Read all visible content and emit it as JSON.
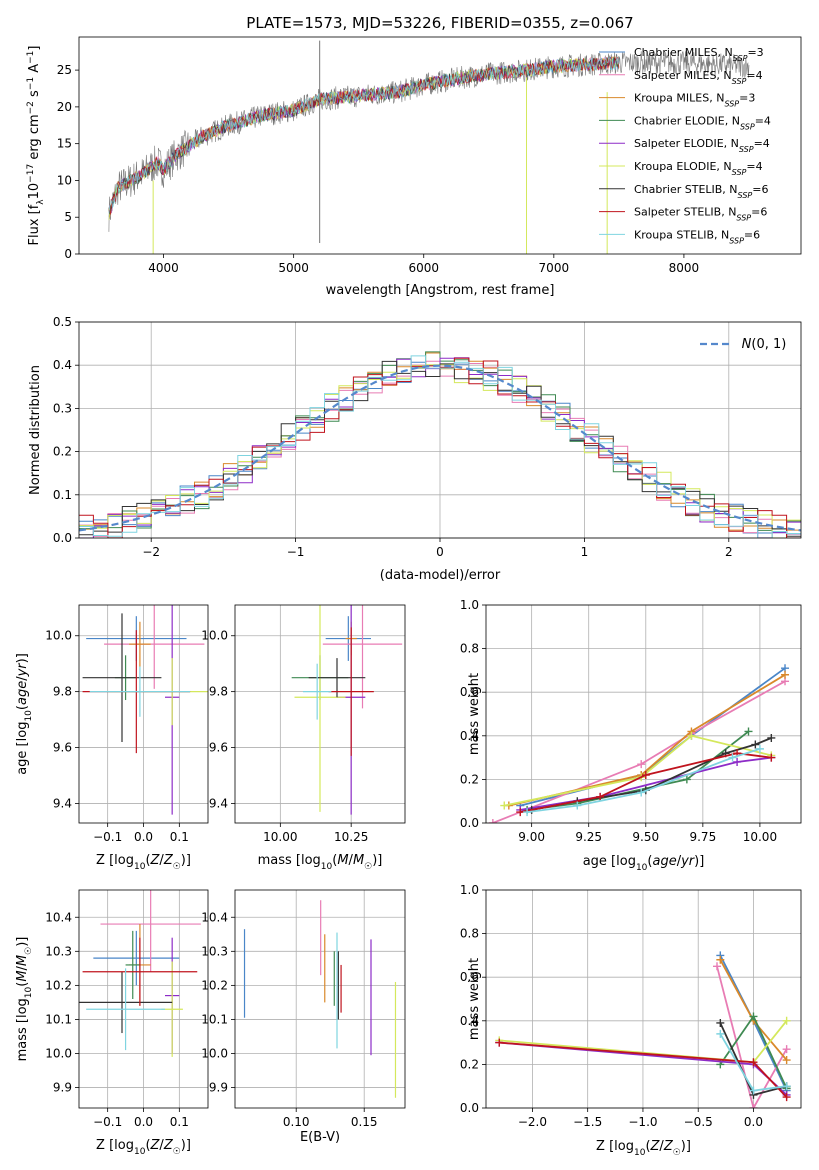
{
  "figure_title": "PLATE=1573, MJD=53226, FIBERID=0355, z=0.067",
  "series": [
    {
      "name": "Chabrier MILES, N$_{SSP}$=3",
      "label_main": "Chabrier MILES, N",
      "label_sub": "SSP",
      "label_tail": "=3",
      "color": "#4a86c8"
    },
    {
      "name": "Salpeter MILES, N$_{SSP}$=4",
      "label_main": "Salpeter MILES, N",
      "label_sub": "SSP",
      "label_tail": "=4",
      "color": "#e87cb4"
    },
    {
      "name": "Kroupa MILES, N$_{SSP}$=3",
      "label_main": "Kroupa MILES, N",
      "label_sub": "SSP",
      "label_tail": "=3",
      "color": "#d9892b"
    },
    {
      "name": "Chabrier ELODIE, N$_{SSP}$=4",
      "label_main": "Chabrier ELODIE, N",
      "label_sub": "SSP",
      "label_tail": "=4",
      "color": "#3f8a52"
    },
    {
      "name": "Salpeter ELODIE, N$_{SSP}$=4",
      "label_main": "Salpeter ELODIE, N",
      "label_sub": "SSP",
      "label_tail": "=4",
      "color": "#8d2cc7"
    },
    {
      "name": "Kroupa ELODIE, N$_{SSP}$=4",
      "label_main": "Kroupa ELODIE, N",
      "label_sub": "SSP",
      "label_tail": "=4",
      "color": "#d4e85c"
    },
    {
      "name": "Chabrier STELIB, N$_{SSP}$=6",
      "label_main": "Chabrier STELIB, N",
      "label_sub": "SSP",
      "label_tail": "=6",
      "color": "#333333"
    },
    {
      "name": "Salpeter STELIB, N$_{SSP}$=6",
      "label_main": "Salpeter STELIB, N",
      "label_sub": "SSP",
      "label_tail": "=6",
      "color": "#c0141e"
    },
    {
      "name": "Kroupa STELIB, N$_{SSP}$=6",
      "label_main": "Kroupa STELIB, N",
      "label_sub": "SSP",
      "label_tail": "=6",
      "color": "#7fd4e0"
    }
  ],
  "chart_data": [
    {
      "id": "spectrum",
      "type": "line",
      "title": "PLATE=1573, MJD=53226, FIBERID=0355, z=0.067",
      "xlabel": "wavelength [Angstrom, rest frame]",
      "ylabel": "Flux [f_λ10^-17 erg cm^-2 s^-1 A^-1]",
      "xlim": [
        3350,
        8900
      ],
      "ylim": [
        0,
        29.5
      ],
      "xticks": [
        4000,
        5000,
        6000,
        7000,
        8000
      ],
      "yticks": [
        0,
        5,
        10,
        15,
        20,
        25
      ],
      "grid": false,
      "legend": "right",
      "trend": [
        [
          3580,
          5.5
        ],
        [
          3650,
          9
        ],
        [
          3750,
          10
        ],
        [
          3850,
          11
        ],
        [
          3950,
          12.5
        ],
        [
          4000,
          11.5
        ],
        [
          4100,
          13.5
        ],
        [
          4300,
          16
        ],
        [
          4500,
          17.5
        ],
        [
          4800,
          19
        ],
        [
          5000,
          19.5
        ],
        [
          5200,
          21
        ],
        [
          5500,
          21.5
        ],
        [
          5800,
          22
        ],
        [
          6000,
          23
        ],
        [
          6300,
          24
        ],
        [
          6500,
          24.5
        ],
        [
          6800,
          25
        ],
        [
          7000,
          25.5
        ],
        [
          7300,
          25.8
        ],
        [
          7500,
          26
        ],
        [
          8000,
          26
        ],
        [
          8500,
          25.5
        ]
      ],
      "spikes": [
        [
          5200,
          1.5,
          29
        ],
        [
          3920,
          0,
          10
        ],
        [
          6790,
          0,
          24
        ],
        [
          7410,
          0,
          22
        ]
      ]
    },
    {
      "id": "residuals",
      "type": "histogram",
      "xlabel": "(data-model)/error",
      "ylabel": "Normed distribution",
      "xlim": [
        -2.5,
        2.5
      ],
      "ylim": [
        0,
        0.5
      ],
      "xticks": [
        -2,
        -1,
        0,
        1,
        2
      ],
      "yticks": [
        0.0,
        0.1,
        0.2,
        0.3,
        0.4,
        0.5
      ],
      "grid": true,
      "legend": "top-right",
      "reference": {
        "name": "N(0,1)",
        "mu": 0,
        "sigma": 1
      }
    },
    {
      "id": "age_vs_Z",
      "type": "scatter",
      "xlabel": "Z [log10(Z/Z☉)]",
      "ylabel": "age [log10(age/yr)]",
      "xlim": [
        -0.18,
        0.18
      ],
      "ylim": [
        9.33,
        10.11
      ],
      "xticks": [
        -0.1,
        0.0,
        0.1
      ],
      "yticks": [
        9.4,
        9.6,
        9.8,
        10.0
      ],
      "grid": true,
      "points": [
        [
          -0.02,
          9.99,
          0.14,
          0.08
        ],
        [
          0.03,
          9.97,
          0.14,
          0.16
        ],
        [
          -0.01,
          9.97,
          0.03,
          0.08
        ],
        [
          -0.05,
          9.85,
          0.03,
          0.08
        ],
        [
          0.08,
          9.78,
          0.02,
          0.42
        ],
        [
          0.08,
          9.8,
          0.18,
          0.12
        ],
        [
          -0.06,
          9.85,
          0.11,
          0.23
        ],
        [
          -0.02,
          9.8,
          0.15,
          0.22
        ],
        [
          -0.01,
          9.8,
          0.14,
          0.09
        ]
      ]
    },
    {
      "id": "age_vs_mass",
      "type": "scatter",
      "xlabel": "mass [log10(M/M☉)]",
      "ylabel": "",
      "xlim": [
        9.84,
        10.44
      ],
      "ylim": [
        9.33,
        10.11
      ],
      "xticks": [
        10.0,
        10.25
      ],
      "yticks": [
        9.4,
        9.6,
        9.8,
        10.0
      ],
      "grid": true,
      "points": [
        [
          10.24,
          9.99,
          0.08,
          0.08
        ],
        [
          10.29,
          9.97,
          0.14,
          0.23
        ],
        [
          10.25,
          9.99,
          0.02,
          0.06
        ],
        [
          10.14,
          9.85,
          0.1,
          0.08
        ],
        [
          10.25,
          9.78,
          0.05,
          0.42
        ],
        [
          10.14,
          9.78,
          0.09,
          0.41
        ],
        [
          10.2,
          9.85,
          0.1,
          0.07
        ],
        [
          10.25,
          9.8,
          0.08,
          0.23
        ],
        [
          10.13,
          9.8,
          0.05,
          0.1
        ]
      ]
    },
    {
      "id": "weight_vs_age",
      "type": "line",
      "xlabel": "age [log10(age/yr)]",
      "ylabel": "mass weight",
      "xlim": [
        8.8,
        10.18
      ],
      "ylim": [
        0,
        1
      ],
      "xticks": [
        9.0,
        9.25,
        9.5,
        9.75,
        10.0
      ],
      "yticks": [
        0.0,
        0.2,
        0.4,
        0.6,
        0.8,
        1.0
      ],
      "grid": true,
      "lines": [
        {
          "x": [
            8.95,
            9.48,
            9.7,
            10.11
          ],
          "y": [
            0.08,
            0.22,
            0.4,
            0.71
          ]
        },
        {
          "x": [
            8.83,
            9.48,
            9.7,
            10.11
          ],
          "y": [
            0.0,
            0.27,
            0.41,
            0.65
          ]
        },
        {
          "x": [
            8.9,
            9.48,
            9.7,
            10.11
          ],
          "y": [
            0.08,
            0.22,
            0.42,
            0.68
          ]
        },
        {
          "x": [
            8.98,
            9.2,
            9.68,
            9.95
          ],
          "y": [
            0.06,
            0.09,
            0.2,
            0.42
          ]
        },
        {
          "x": [
            8.95,
            9.3,
            9.9,
            10.05
          ],
          "y": [
            0.06,
            0.12,
            0.28,
            0.3
          ]
        },
        {
          "x": [
            8.88,
            9.48,
            9.7,
            10.05
          ],
          "y": [
            0.08,
            0.21,
            0.4,
            0.31
          ]
        },
        {
          "x": [
            9.0,
            9.2,
            9.5,
            9.85,
            9.98,
            10.05
          ],
          "y": [
            0.06,
            0.1,
            0.15,
            0.32,
            0.36,
            0.39
          ]
        },
        {
          "x": [
            8.95,
            9.3,
            9.5,
            9.9,
            10.05
          ],
          "y": [
            0.05,
            0.12,
            0.22,
            0.32,
            0.3
          ]
        },
        {
          "x": [
            8.98,
            9.2,
            9.48,
            9.88,
            10.0
          ],
          "y": [
            0.05,
            0.08,
            0.14,
            0.3,
            0.34
          ]
        }
      ]
    },
    {
      "id": "mass_vs_Z",
      "type": "scatter",
      "xlabel": "Z [log10(Z/Z☉)]",
      "ylabel": "mass [log10(M/M☉)]",
      "xlim": [
        -0.18,
        0.18
      ],
      "ylim": [
        9.84,
        10.48
      ],
      "xticks": [
        -0.1,
        0.0,
        0.1
      ],
      "yticks": [
        9.9,
        10.0,
        10.1,
        10.2,
        10.3,
        10.4
      ],
      "grid": true,
      "points": [
        [
          -0.02,
          10.28,
          0.12,
          0.08
        ],
        [
          0.02,
          10.38,
          0.14,
          0.14
        ],
        [
          -0.01,
          10.26,
          0.03,
          0.12
        ],
        [
          -0.03,
          10.26,
          0.02,
          0.1
        ],
        [
          0.08,
          10.17,
          0.02,
          0.17
        ],
        [
          0.08,
          10.13,
          0.03,
          0.14
        ],
        [
          -0.06,
          10.15,
          0.14,
          0.09
        ],
        [
          -0.01,
          10.24,
          0.16,
          0.1
        ],
        [
          -0.05,
          10.13,
          0.11,
          0.12
        ]
      ]
    },
    {
      "id": "mass_vs_EBV",
      "type": "scatter",
      "xlabel": "E(B-V)",
      "ylabel": "",
      "xlim": [
        0.055,
        0.18
      ],
      "ylim": [
        9.84,
        10.48
      ],
      "xticks": [
        0.1,
        0.15
      ],
      "yticks": [
        9.9,
        10.0,
        10.1,
        10.2,
        10.3,
        10.4
      ],
      "grid": true,
      "points": [
        [
          0.062,
          10.235,
          0,
          0.13
        ],
        [
          0.118,
          10.34,
          0,
          0.11
        ],
        [
          0.121,
          10.25,
          0,
          0.1
        ],
        [
          0.128,
          10.22,
          0,
          0.08
        ],
        [
          0.155,
          10.165,
          0,
          0.17
        ],
        [
          0.173,
          10.04,
          0,
          0.17
        ],
        [
          0.131,
          10.2,
          0,
          0.1
        ],
        [
          0.133,
          10.19,
          0,
          0.07
        ],
        [
          0.13,
          10.185,
          0,
          0.17
        ]
      ]
    },
    {
      "id": "weight_vs_Z",
      "type": "line",
      "xlabel": "Z [log10(Z/Z☉)]",
      "ylabel": "mass weight",
      "xlim": [
        -2.42,
        0.43
      ],
      "ylim": [
        0,
        1
      ],
      "xticks": [
        -2.0,
        -1.5,
        -1.0,
        -0.5,
        0.0
      ],
      "yticks": [
        0.0,
        0.2,
        0.4,
        0.6,
        0.8,
        1.0
      ],
      "grid": true,
      "lines": [
        {
          "x": [
            -0.3,
            0.0,
            0.3
          ],
          "y": [
            0.7,
            0.4,
            0.08
          ]
        },
        {
          "x": [
            -0.33,
            0.0,
            0.3
          ],
          "y": [
            0.65,
            0.0,
            0.27
          ]
        },
        {
          "x": [
            -0.3,
            0.0,
            0.3
          ],
          "y": [
            0.68,
            0.4,
            0.22
          ]
        },
        {
          "x": [
            -0.3,
            0.0,
            0.3
          ],
          "y": [
            0.2,
            0.42,
            0.09
          ]
        },
        {
          "x": [
            -2.3,
            0.0,
            0.3
          ],
          "y": [
            0.3,
            0.2,
            0.06
          ]
        },
        {
          "x": [
            -2.3,
            0.0,
            0.3
          ],
          "y": [
            0.31,
            0.21,
            0.4
          ]
        },
        {
          "x": [
            -0.3,
            0.0,
            0.3
          ],
          "y": [
            0.39,
            0.06,
            0.1
          ]
        },
        {
          "x": [
            -2.3,
            0.0,
            0.3
          ],
          "y": [
            0.3,
            0.21,
            0.05
          ]
        },
        {
          "x": [
            -0.3,
            0.0,
            0.3
          ],
          "y": [
            0.34,
            0.08,
            0.1
          ]
        }
      ]
    }
  ]
}
